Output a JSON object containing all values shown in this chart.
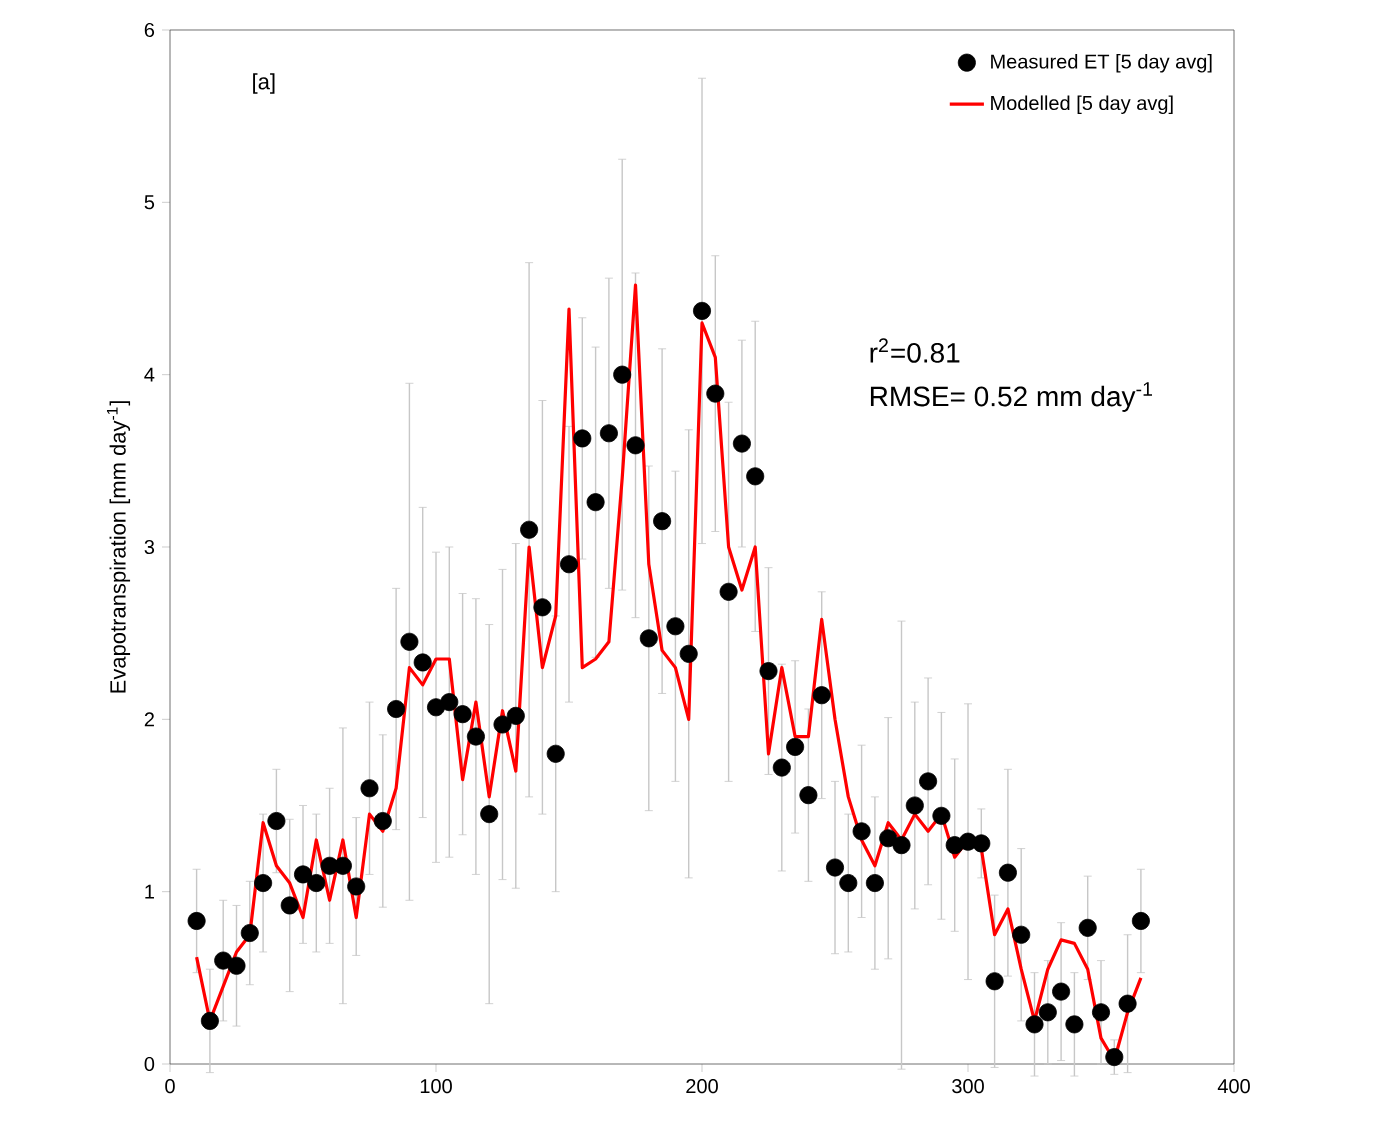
{
  "chart_data": {
    "type": "scatter",
    "ylabel": "Evapotranspiration [mm day$^{-1}$]",
    "annotations": [
      "[a]",
      "r$^{2}$=0.81",
      "RMSE= 0.52 mm day$^{-1}$"
    ],
    "x": [
      10,
      15,
      20,
      25,
      30,
      35,
      40,
      45,
      50,
      55,
      60,
      65,
      70,
      75,
      80,
      85,
      90,
      95,
      100,
      105,
      110,
      115,
      120,
      125,
      130,
      135,
      140,
      145,
      150,
      155,
      160,
      165,
      170,
      175,
      180,
      185,
      190,
      195,
      200,
      205,
      210,
      215,
      220,
      225,
      230,
      235,
      240,
      245,
      250,
      255,
      260,
      265,
      270,
      275,
      280,
      285,
      290,
      295,
      300,
      305,
      310,
      315,
      320,
      325,
      330,
      335,
      340,
      345,
      350,
      355,
      360,
      365
    ],
    "series": [
      {
        "name": "Measured ET [5 day avg]",
        "marker": "circle",
        "color": "#000000",
        "values": [
          0.83,
          0.25,
          0.6,
          0.57,
          0.76,
          1.05,
          1.41,
          0.92,
          1.1,
          1.05,
          1.15,
          1.15,
          1.03,
          1.6,
          1.41,
          2.06,
          2.45,
          2.33,
          2.07,
          2.1,
          2.03,
          1.9,
          1.45,
          1.97,
          2.02,
          3.1,
          2.65,
          1.8,
          2.9,
          3.63,
          3.26,
          3.66,
          4.0,
          3.59,
          2.47,
          3.15,
          2.54,
          2.38,
          4.37,
          3.89,
          2.74,
          3.6,
          3.41,
          2.28,
          1.72,
          1.84,
          1.56,
          2.14,
          1.14,
          1.05,
          1.35,
          1.05,
          1.31,
          1.27,
          1.5,
          1.64,
          1.44,
          1.27,
          1.29,
          1.28,
          0.48,
          1.11,
          0.75,
          0.23,
          0.3,
          0.42,
          0.23,
          0.79,
          0.3,
          0.04,
          0.35,
          0.83
        ],
        "errors": [
          0.3,
          0.3,
          0.35,
          0.35,
          0.3,
          0.4,
          0.3,
          0.5,
          0.4,
          0.4,
          0.45,
          0.8,
          0.4,
          0.5,
          0.5,
          0.7,
          1.5,
          0.9,
          0.9,
          0.9,
          0.7,
          0.8,
          1.1,
          0.9,
          1.0,
          1.55,
          1.2,
          0.8,
          0.8,
          0.7,
          0.9,
          0.9,
          1.25,
          1.0,
          1.0,
          1.0,
          0.9,
          1.3,
          1.35,
          0.8,
          1.1,
          0.6,
          0.9,
          0.6,
          0.6,
          0.5,
          0.5,
          0.6,
          0.5,
          0.4,
          0.5,
          0.5,
          0.7,
          1.3,
          0.6,
          0.6,
          0.6,
          0.5,
          0.8,
          0.2,
          0.5,
          0.6,
          0.5,
          0.3,
          0.3,
          0.4,
          0.3,
          0.3,
          0.3,
          0.1,
          0.4,
          0.3
        ]
      },
      {
        "name": "Modelled [5 day avg]",
        "type": "line",
        "marker": "none",
        "line_style": "solid",
        "color": "#ff0000",
        "values": [
          0.62,
          0.25,
          0.45,
          0.65,
          0.75,
          1.4,
          1.15,
          1.05,
          0.85,
          1.3,
          0.95,
          1.3,
          0.85,
          1.45,
          1.35,
          1.6,
          2.3,
          2.2,
          2.35,
          2.35,
          1.65,
          2.1,
          1.55,
          2.05,
          1.7,
          3.0,
          2.3,
          2.6,
          4.38,
          2.3,
          2.35,
          2.45,
          3.4,
          4.52,
          2.9,
          2.4,
          2.3,
          2.0,
          4.3,
          4.1,
          3.0,
          2.75,
          3.0,
          1.8,
          2.3,
          1.9,
          1.9,
          2.58,
          2.0,
          1.55,
          1.3,
          1.15,
          1.4,
          1.3,
          1.45,
          1.35,
          1.45,
          1.2,
          1.3,
          1.25,
          0.75,
          0.9,
          0.55,
          0.25,
          0.55,
          0.72,
          0.7,
          0.55,
          0.15,
          0.02,
          0.3,
          0.5
        ]
      }
    ],
    "xlim": [
      0,
      400
    ],
    "ylim": [
      0,
      6
    ],
    "xticks": [
      0,
      100,
      200,
      300,
      400
    ],
    "yticks": [
      0,
      1,
      2,
      3,
      4,
      5,
      6
    ],
    "grid": false,
    "legend": "top right"
  }
}
